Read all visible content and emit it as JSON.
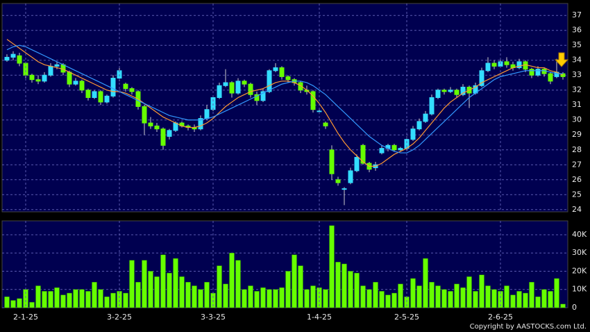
{
  "chart_data": [
    {
      "type": "candlestick",
      "up_color": "#33ddff",
      "down_color": "#66ff00",
      "ylim": [
        23.85,
        37.8
      ],
      "yticks": [
        24,
        25,
        26,
        27,
        28,
        29,
        30,
        31,
        32,
        33,
        34,
        35,
        36,
        37
      ],
      "grid": true,
      "candles": [
        [
          34.0,
          34.4,
          33.9,
          34.2
        ],
        [
          34.2,
          34.6,
          34.0,
          34.4
        ],
        [
          34.3,
          34.5,
          33.6,
          33.8
        ],
        [
          33.8,
          33.9,
          32.8,
          33.0
        ],
        [
          33.0,
          33.1,
          32.5,
          32.7
        ],
        [
          32.7,
          33.0,
          32.4,
          32.6
        ],
        [
          32.6,
          33.2,
          32.5,
          33.0
        ],
        [
          33.0,
          33.8,
          32.9,
          33.6
        ],
        [
          33.6,
          33.9,
          33.4,
          33.7
        ],
        [
          33.7,
          33.8,
          33.0,
          33.2
        ],
        [
          33.2,
          33.3,
          32.2,
          32.4
        ],
        [
          32.4,
          32.8,
          32.3,
          32.6
        ],
        [
          32.6,
          32.7,
          31.8,
          32.0
        ],
        [
          32.0,
          32.1,
          31.3,
          31.5
        ],
        [
          31.5,
          32.0,
          31.4,
          31.9
        ],
        [
          31.9,
          32.0,
          31.0,
          31.2
        ],
        [
          31.2,
          31.7,
          31.1,
          31.6
        ],
        [
          31.6,
          33.0,
          31.5,
          32.8
        ],
        [
          32.8,
          33.6,
          32.6,
          33.3
        ],
        [
          32.4,
          32.5,
          31.9,
          32.1
        ],
        [
          32.1,
          32.2,
          31.7,
          31.9
        ],
        [
          31.9,
          32.0,
          30.7,
          30.9
        ],
        [
          30.9,
          31.0,
          29.0,
          29.8
        ],
        [
          29.8,
          30.2,
          29.4,
          29.6
        ],
        [
          29.6,
          29.8,
          29.2,
          29.4
        ],
        [
          29.4,
          29.5,
          28.0,
          28.3
        ],
        [
          28.9,
          29.4,
          28.7,
          29.3
        ],
        [
          29.3,
          29.9,
          29.2,
          29.8
        ],
        [
          29.8,
          29.9,
          29.5,
          29.6
        ],
        [
          29.6,
          29.7,
          29.3,
          29.5
        ],
        [
          29.5,
          29.7,
          29.2,
          29.4
        ],
        [
          29.4,
          30.3,
          29.3,
          30.1
        ],
        [
          30.1,
          31.0,
          30.0,
          30.7
        ],
        [
          30.7,
          31.6,
          30.6,
          31.5
        ],
        [
          31.5,
          32.5,
          31.4,
          32.3
        ],
        [
          32.3,
          33.4,
          32.2,
          32.5
        ],
        [
          32.5,
          32.6,
          31.5,
          31.8
        ],
        [
          31.8,
          32.8,
          31.7,
          32.6
        ],
        [
          32.6,
          32.7,
          32.2,
          32.4
        ],
        [
          32.4,
          32.5,
          31.5,
          31.7
        ],
        [
          31.7,
          31.9,
          31.0,
          31.3
        ],
        [
          31.3,
          32.1,
          31.2,
          31.9
        ],
        [
          31.9,
          33.4,
          31.8,
          33.3
        ],
        [
          33.3,
          33.8,
          33.2,
          33.5
        ],
        [
          33.5,
          33.6,
          32.7,
          32.9
        ],
        [
          32.9,
          33.0,
          32.5,
          32.7
        ],
        [
          32.7,
          32.8,
          32.3,
          32.5
        ],
        [
          32.5,
          32.6,
          31.8,
          32.0
        ],
        [
          32.0,
          32.3,
          31.7,
          31.9
        ],
        [
          31.9,
          32.0,
          30.5,
          30.7
        ],
        [
          30.6,
          30.8,
          30.4,
          30.6
        ],
        [
          29.8,
          29.9,
          29.4,
          29.6
        ],
        [
          28.0,
          28.3,
          26.0,
          26.4
        ],
        [
          26.0,
          26.2,
          25.6,
          25.8
        ],
        [
          25.4,
          25.5,
          24.3,
          25.4
        ],
        [
          25.8,
          26.8,
          25.7,
          26.6
        ],
        [
          26.6,
          27.7,
          26.5,
          27.5
        ],
        [
          28.3,
          28.4,
          27.0,
          27.1
        ],
        [
          27.1,
          27.2,
          26.5,
          26.7
        ],
        [
          26.8,
          27.2,
          26.6,
          27.0
        ],
        [
          27.8,
          28.3,
          27.7,
          28.1
        ],
        [
          28.1,
          28.4,
          27.9,
          28.3
        ],
        [
          28.3,
          28.4,
          27.9,
          28.0
        ],
        [
          28.0,
          28.2,
          27.9,
          28.1
        ],
        [
          28.1,
          28.9,
          28.0,
          28.7
        ],
        [
          28.7,
          29.6,
          28.6,
          29.4
        ],
        [
          29.4,
          30.1,
          29.3,
          29.9
        ],
        [
          29.9,
          30.6,
          29.8,
          30.4
        ],
        [
          30.4,
          31.7,
          30.3,
          31.5
        ],
        [
          31.5,
          32.1,
          31.4,
          32.0
        ],
        [
          32.0,
          32.1,
          31.7,
          31.9
        ],
        [
          31.9,
          32.2,
          31.8,
          32.0
        ],
        [
          32.0,
          32.1,
          31.5,
          31.7
        ],
        [
          31.7,
          32.4,
          31.6,
          32.2
        ],
        [
          32.2,
          32.3,
          30.8,
          31.8
        ],
        [
          31.8,
          32.5,
          31.7,
          32.3
        ],
        [
          32.3,
          33.5,
          32.2,
          33.3
        ],
        [
          33.3,
          34.2,
          33.2,
          33.8
        ],
        [
          33.8,
          34.0,
          33.4,
          33.6
        ],
        [
          33.6,
          34.1,
          33.5,
          33.9
        ],
        [
          33.9,
          34.2,
          33.5,
          33.7
        ],
        [
          33.7,
          33.9,
          33.3,
          33.5
        ],
        [
          33.5,
          34.1,
          33.4,
          33.9
        ],
        [
          33.9,
          34.0,
          33.2,
          33.4
        ],
        [
          33.4,
          33.5,
          32.8,
          33.0
        ],
        [
          33.0,
          33.6,
          32.9,
          33.4
        ],
        [
          33.4,
          33.5,
          32.9,
          33.1
        ],
        [
          33.1,
          33.2,
          32.4,
          32.6
        ],
        [
          32.9,
          34.1,
          32.8,
          33.2
        ],
        [
          33.1,
          33.2,
          32.7,
          32.9
        ]
      ],
      "ma_lines": [
        {
          "color": "#ff9933",
          "values": [
            35.4,
            35.1,
            34.8,
            34.5,
            34.2,
            33.9,
            33.7,
            33.6,
            33.5,
            33.4,
            33.2,
            33.0,
            32.8,
            32.6,
            32.4,
            32.2,
            32.0,
            31.9,
            31.9,
            31.8,
            31.6,
            31.4,
            31.1,
            30.8,
            30.5,
            30.2,
            30.0,
            29.8,
            29.6,
            29.5,
            29.5,
            29.6,
            29.8,
            30.1,
            30.5,
            30.9,
            31.2,
            31.5,
            31.7,
            31.9,
            32.0,
            32.1,
            32.3,
            32.5,
            32.6,
            32.6,
            32.5,
            32.3,
            32.0,
            31.6,
            31.1,
            30.5,
            29.8,
            29.1,
            28.5,
            28.0,
            27.6,
            27.2,
            26.9,
            26.9,
            27.1,
            27.4,
            27.7,
            27.9,
            28.1,
            28.4,
            28.8,
            29.3,
            29.8,
            30.3,
            30.8,
            31.2,
            31.5,
            31.8,
            32.0,
            32.2,
            32.5,
            32.7,
            32.9,
            33.1,
            33.3,
            33.5,
            33.6,
            33.7,
            33.6,
            33.5,
            33.5,
            33.3,
            33.2,
            33.0
          ]
        },
        {
          "color": "#3399ff",
          "values": [
            34.7,
            34.9,
            35.0,
            34.9,
            34.7,
            34.5,
            34.3,
            34.1,
            33.9,
            33.7,
            33.5,
            33.3,
            33.1,
            32.9,
            32.7,
            32.5,
            32.3,
            32.1,
            31.9,
            31.7,
            31.5,
            31.3,
            31.1,
            30.9,
            30.7,
            30.5,
            30.3,
            30.2,
            30.1,
            30.0,
            30.0,
            30.0,
            30.1,
            30.2,
            30.4,
            30.6,
            30.8,
            31.0,
            31.2,
            31.4,
            31.6,
            31.8,
            32.0,
            32.2,
            32.4,
            32.5,
            32.6,
            32.6,
            32.5,
            32.3,
            32.0,
            31.7,
            31.3,
            30.9,
            30.5,
            30.1,
            29.7,
            29.3,
            28.9,
            28.6,
            28.3,
            28.1,
            27.9,
            27.8,
            27.8,
            28.0,
            28.3,
            28.7,
            29.1,
            29.5,
            29.9,
            30.3,
            30.7,
            31.1,
            31.5,
            31.8,
            32.1,
            32.4,
            32.7,
            32.9,
            33.0,
            33.1,
            33.2,
            33.3,
            33.3,
            33.3,
            33.3,
            33.2,
            33.1,
            33.1
          ]
        }
      ]
    },
    {
      "type": "bar",
      "color": "#66ff00",
      "ylim": [
        0,
        47600
      ],
      "yticks": [
        0,
        {
          "value": 10000,
          "label": "10K"
        },
        {
          "value": 20000,
          "label": "20K"
        },
        {
          "value": 30000,
          "label": "30K"
        },
        {
          "value": 40000,
          "label": "40K"
        }
      ],
      "grid": true,
      "categories": [
        null,
        null,
        null,
        "2-1-25",
        null,
        null,
        null,
        null,
        null,
        null,
        null,
        null,
        null,
        null,
        null,
        null,
        null,
        null,
        "3-2-25",
        null,
        null,
        null,
        null,
        null,
        null,
        null,
        null,
        null,
        null,
        null,
        null,
        null,
        null,
        "3-3-25",
        null,
        null,
        null,
        null,
        null,
        null,
        null,
        null,
        null,
        null,
        null,
        null,
        null,
        null,
        null,
        null,
        "1-4-25",
        null,
        null,
        null,
        null,
        null,
        null,
        null,
        null,
        null,
        null,
        null,
        null,
        null,
        "2-5-25",
        null,
        null,
        null,
        null,
        null,
        null,
        null,
        null,
        null,
        null,
        null,
        null,
        null,
        null,
        "2-6-25",
        null,
        null,
        null,
        null,
        null,
        null,
        null,
        null,
        null,
        null
      ],
      "values": [
        6000,
        4000,
        5000,
        10000,
        3000,
        12000,
        9000,
        9000,
        11000,
        7000,
        8000,
        10000,
        10000,
        9000,
        14000,
        10000,
        6000,
        8000,
        9000,
        8000,
        26000,
        14000,
        26000,
        20000,
        17000,
        29000,
        19000,
        27000,
        17000,
        14000,
        12000,
        10000,
        14000,
        8000,
        23000,
        13000,
        30000,
        26000,
        10000,
        12000,
        9000,
        11000,
        10000,
        10000,
        11000,
        20000,
        29000,
        23000,
        10000,
        12000,
        11000,
        10000,
        45000,
        25000,
        24000,
        20000,
        19000,
        12000,
        10000,
        14000,
        9000,
        7000,
        8000,
        13000,
        6000,
        16000,
        12000,
        27000,
        14000,
        12000,
        10000,
        9000,
        13000,
        11000,
        17000,
        9000,
        18000,
        12000,
        10000,
        9000,
        12000,
        7000,
        9000,
        8000,
        14000,
        6000,
        10000,
        9000,
        16000,
        2000
      ]
    }
  ],
  "footer": "Copyright by AASTOCKS.com Ltd."
}
